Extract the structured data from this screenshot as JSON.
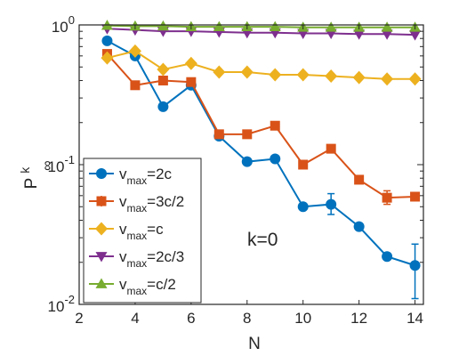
{
  "chart_data": {
    "type": "line",
    "xlabel": "N",
    "ylabel": "P",
    "ylabel_superscript": "k",
    "ylabel_subscript": "∞",
    "xlim": [
      2,
      14.3
    ],
    "ylim": [
      0.01,
      1
    ],
    "yscale": "log",
    "xticks": [
      2,
      4,
      6,
      8,
      10,
      12,
      14
    ],
    "xtick_labels": [
      "2",
      "4",
      "6",
      "8",
      "10",
      "12",
      "14"
    ],
    "yticks": [
      0.01,
      0.1,
      1
    ],
    "ytick_labels": [
      {
        "base": "10",
        "exp": "-2"
      },
      {
        "base": "10",
        "exp": "-1"
      },
      {
        "base": "10",
        "exp": "0"
      }
    ],
    "grid": false,
    "legend_position": "bottom-left",
    "annotation": "k=0",
    "series": [
      {
        "legend": {
          "main": "v",
          "sub": "max",
          "rest": "=2c"
        },
        "color": "#0072BD",
        "marker": "circle",
        "x": [
          3,
          4,
          5,
          6,
          7,
          8,
          9,
          10,
          11,
          12,
          13,
          14
        ],
        "y": [
          0.77,
          0.6,
          0.26,
          0.37,
          0.16,
          0.105,
          0.11,
          0.05,
          0.052,
          0.036,
          0.022,
          0.019
        ],
        "err_low": [
          0.77,
          0.6,
          0.26,
          0.37,
          0.16,
          0.105,
          0.11,
          0.05,
          0.044,
          0.036,
          0.022,
          0.011
        ],
        "err_high": [
          0.77,
          0.6,
          0.26,
          0.37,
          0.16,
          0.105,
          0.11,
          0.05,
          0.062,
          0.036,
          0.022,
          0.027
        ]
      },
      {
        "legend": {
          "main": "v",
          "sub": "max",
          "rest": "=3c/2"
        },
        "color": "#D95319",
        "marker": "square",
        "x": [
          3,
          4,
          5,
          6,
          7,
          8,
          9,
          10,
          11,
          12,
          13,
          14
        ],
        "y": [
          0.62,
          0.37,
          0.4,
          0.39,
          0.165,
          0.165,
          0.19,
          0.1,
          0.13,
          0.078,
          0.058,
          0.059
        ],
        "err_low": [
          0.62,
          0.37,
          0.4,
          0.39,
          0.165,
          0.165,
          0.19,
          0.1,
          0.13,
          0.078,
          0.052,
          0.059
        ],
        "err_high": [
          0.62,
          0.37,
          0.4,
          0.39,
          0.165,
          0.165,
          0.19,
          0.1,
          0.13,
          0.078,
          0.065,
          0.059
        ]
      },
      {
        "legend": {
          "main": "v",
          "sub": "max",
          "rest": "=c"
        },
        "color": "#EDB120",
        "marker": "diamond",
        "x": [
          3,
          4,
          5,
          6,
          7,
          8,
          9,
          10,
          11,
          12,
          13,
          14
        ],
        "y": [
          0.58,
          0.65,
          0.48,
          0.53,
          0.46,
          0.46,
          0.44,
          0.44,
          0.43,
          0.42,
          0.41,
          0.41
        ]
      },
      {
        "legend": {
          "main": "v",
          "sub": "max",
          "rest": "=2c/3"
        },
        "color": "#7E2F8E",
        "marker": "triangle-down",
        "x": [
          3,
          4,
          5,
          6,
          7,
          8,
          9,
          10,
          11,
          12,
          13,
          14
        ],
        "y": [
          0.94,
          0.92,
          0.9,
          0.9,
          0.89,
          0.88,
          0.88,
          0.87,
          0.87,
          0.86,
          0.86,
          0.85
        ]
      },
      {
        "legend": {
          "main": "v",
          "sub": "max",
          "rest": "=c/2"
        },
        "color": "#77AC30",
        "marker": "triangle-up",
        "x": [
          3,
          4,
          5,
          6,
          7,
          8,
          9,
          10,
          11,
          12,
          13,
          14
        ],
        "y": [
          0.99,
          0.98,
          0.98,
          0.97,
          0.97,
          0.97,
          0.97,
          0.96,
          0.96,
          0.96,
          0.96,
          0.96
        ]
      }
    ]
  }
}
